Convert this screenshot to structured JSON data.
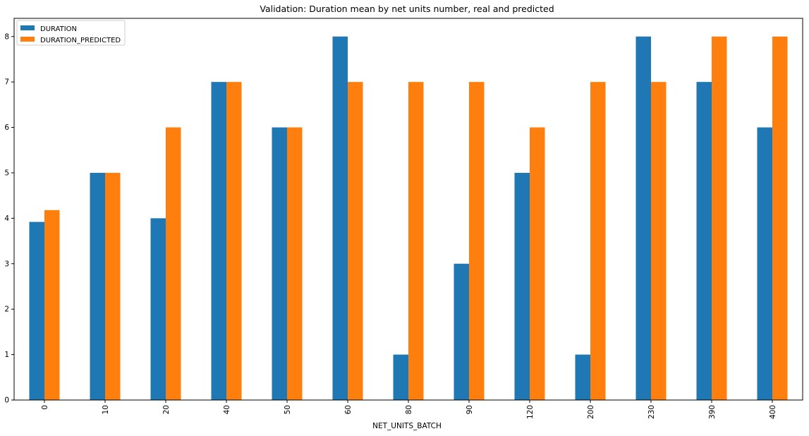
{
  "chart_data": {
    "type": "bar",
    "title": "Validation: Duration mean by net units number, real and predicted",
    "xlabel": "NET_UNITS_BATCH",
    "ylabel": "",
    "categories": [
      "0",
      "10",
      "20",
      "40",
      "50",
      "60",
      "80",
      "90",
      "120",
      "200",
      "230",
      "390",
      "400"
    ],
    "series": [
      {
        "name": "DURATION",
        "color": "#1f77b4",
        "values": [
          3.92,
          5,
          4,
          7,
          6,
          8,
          1,
          3,
          5,
          1,
          8,
          7,
          6
        ]
      },
      {
        "name": "DURATION_PREDICTED",
        "color": "#ff7f0e",
        "values": [
          4.18,
          5,
          6,
          7,
          6,
          7,
          7,
          7,
          6,
          7,
          7,
          8,
          8
        ]
      }
    ],
    "ylim": [
      0,
      8.4
    ],
    "yticks": [
      0,
      1,
      2,
      3,
      4,
      5,
      6,
      7,
      8
    ],
    "grid": false,
    "legend_position": "top-left",
    "xtick_rotation": "vertical"
  }
}
